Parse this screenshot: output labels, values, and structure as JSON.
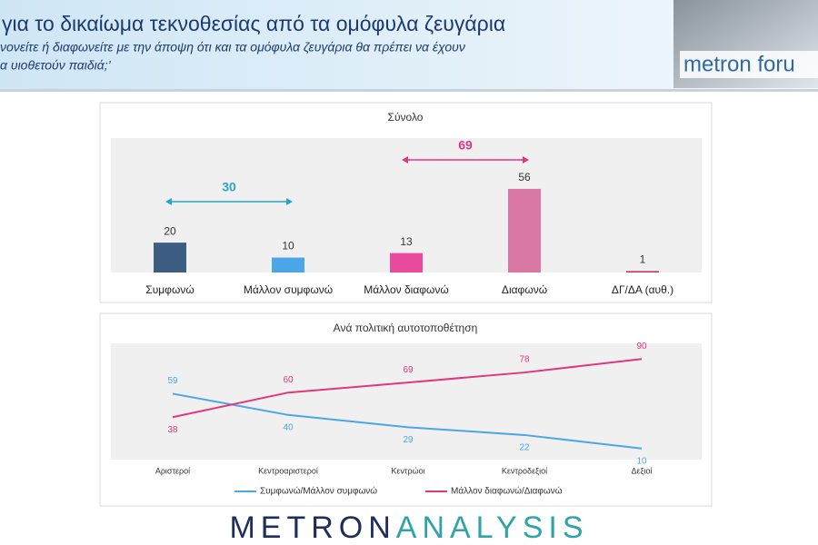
{
  "header": {
    "title": "για το δικαίωμα τεκνοθεσίας από τα ομόφυλα ζευγάρια",
    "subtitle_lines": [
      "νονείτε ή διαφωνείτε με την άποψη ότι και τα ομόφυλα ζευγάρια θα πρέπει να έχουν",
      "α υιοθετούν παιδιά;’"
    ],
    "logo": "metron foru"
  },
  "footer": {
    "brand_1": "METRON",
    "brand_2": "ANALYSIS"
  },
  "chart_data": [
    {
      "type": "bar",
      "title": "Σύνολο",
      "categories": [
        "Συμφωνώ",
        "Μάλλον συμφωνώ",
        "Μάλλον διαφωνώ",
        "Διαφωνώ",
        "ΔΓ/ΔΑ (αυθ.)"
      ],
      "values": [
        20,
        10,
        13,
        56,
        1
      ],
      "colors": [
        "#3d5c82",
        "#4aa6e6",
        "#ea4a9e",
        "#da78a4",
        "#c43b70"
      ],
      "ylim": [
        0,
        90
      ],
      "annotations": [
        {
          "text": "30",
          "color": "#27a6c8"
        },
        {
          "text": "69",
          "color": "#e0377f"
        }
      ]
    },
    {
      "type": "line",
      "title": "Ανά πολιτική αυτοτοποθέτηση",
      "categories": [
        "Αριστεροί",
        "Κεντροαριστεροί",
        "Κεντρώοι",
        "Κεντροδεξιοί",
        "Δεξιοί"
      ],
      "series": [
        {
          "name": "Συμφωνώ/Μάλλον συμφωνώ",
          "color": "#4aa6e6",
          "values": [
            59,
            40,
            29,
            22,
            10
          ]
        },
        {
          "name": "Μάλλον διαφωνώ/Διαφωνώ",
          "color": "#e0377f",
          "values": [
            38,
            60,
            69,
            78,
            90
          ]
        }
      ],
      "ylim": [
        0,
        100
      ]
    }
  ]
}
